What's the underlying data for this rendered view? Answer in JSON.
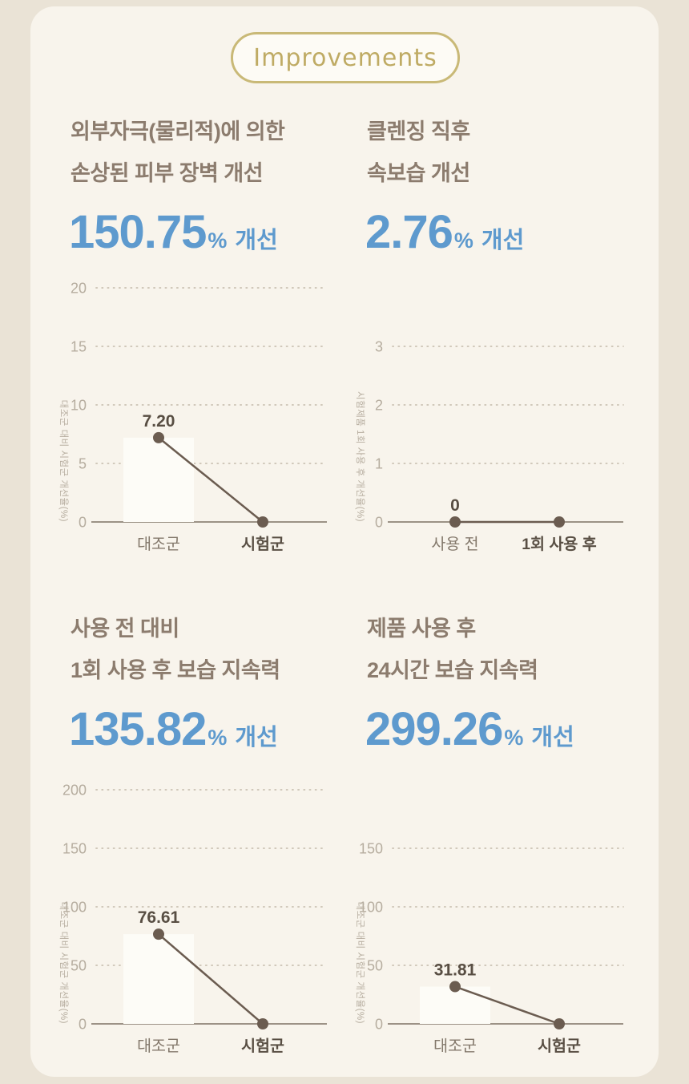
{
  "badge": {
    "label": "Improvements"
  },
  "colors": {
    "outer_bg": "#eae3d6",
    "card_bg": "#f8f4ec",
    "badge_border": "#c9b977",
    "badge_text": "#bfab64",
    "title_text": "#8c7c6e",
    "stat_blue": "#5e9ace",
    "tick_text": "#b6ad9f",
    "grid_dots": "#cac1b2",
    "axis_line": "#8f8577",
    "series_line": "#6b5c50",
    "category_text": "#83786b",
    "dark_label": "#584e43",
    "bar_fill": "#fdfcf7"
  },
  "sections": [
    {
      "title_lines": [
        "외부자극(물리적)에 의한",
        "손상된 피부 장벽 개선"
      ],
      "stat": {
        "value": "150.75",
        "unit": "%",
        "suffix": "개선"
      }
    },
    {
      "title_lines": [
        "클렌징 직후",
        "속보습 개선"
      ],
      "stat": {
        "value": "2.76",
        "unit": "%",
        "suffix": "개선"
      }
    },
    {
      "title_lines": [
        "사용 전 대비",
        "1회 사용 후 보습 지속력"
      ],
      "stat": {
        "value": "135.82",
        "unit": "%",
        "suffix": "개선"
      }
    },
    {
      "title_lines": [
        "제품 사용 후",
        "24시간 보습 지속력"
      ],
      "stat": {
        "value": "299.26",
        "unit": "%",
        "suffix": "개선"
      }
    }
  ],
  "chart_data": [
    {
      "type": "line",
      "categories": [
        "대조군",
        "시험군"
      ],
      "values": [
        7.2,
        0
      ],
      "point_labels": [
        "7.20",
        ""
      ],
      "y_ticks": [
        0,
        5,
        10,
        15,
        20
      ],
      "ylim": [
        0,
        20
      ],
      "ylabel": "대조군 대비 시험군 개선율(%)",
      "grid": "dotted",
      "legend": "none",
      "bar_category_index": 0,
      "bold_category_index": 1
    },
    {
      "type": "line",
      "categories": [
        "사용 전",
        "1회 사용 후"
      ],
      "values": [
        0,
        0
      ],
      "point_labels": [
        "0",
        ""
      ],
      "y_ticks": [
        0,
        1,
        2,
        3
      ],
      "ylim": [
        0,
        3
      ],
      "ylabel": "시험제품 1회 사용 후 개선율(%)",
      "grid": "dotted",
      "legend": "none",
      "bar_category_index": null,
      "bold_category_index": 1
    },
    {
      "type": "line",
      "categories": [
        "대조군",
        "시험군"
      ],
      "values": [
        76.61,
        0
      ],
      "point_labels": [
        "76.61",
        ""
      ],
      "y_ticks": [
        0,
        50,
        100,
        150,
        200
      ],
      "ylim": [
        0,
        200
      ],
      "ylabel": "대조군 대비 시험군 개선율(%)",
      "grid": "dotted",
      "legend": "none",
      "bar_category_index": 0,
      "bold_category_index": 1
    },
    {
      "type": "line",
      "categories": [
        "대조군",
        "시험군"
      ],
      "values": [
        31.81,
        0
      ],
      "point_labels": [
        "31.81",
        ""
      ],
      "y_ticks": [
        0,
        50,
        100,
        150
      ],
      "ylim": [
        0,
        150
      ],
      "ylabel": "대조군 대비 시험군 개선율(%)",
      "grid": "dotted",
      "legend": "none",
      "bar_category_index": 0,
      "bold_category_index": 1
    }
  ]
}
